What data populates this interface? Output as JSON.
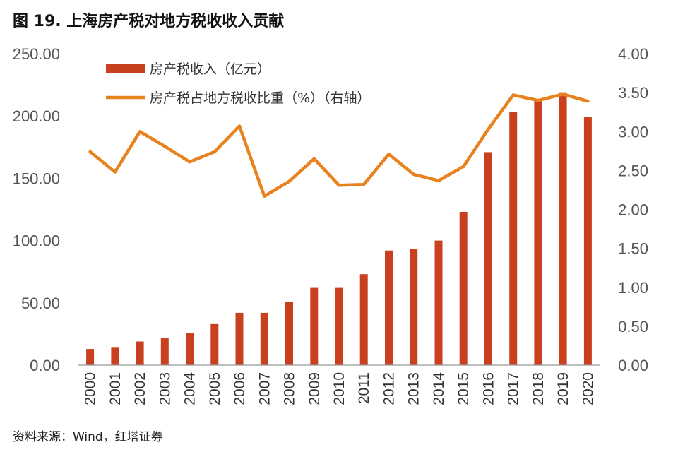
{
  "figure": {
    "title": "图 19. 上海房产税对地方税收收入贡献",
    "source": "资料来源：Wind，红塔证券"
  },
  "chart_data": {
    "type": "bar+line",
    "categories": [
      "2000",
      "2001",
      "2002",
      "2003",
      "2004",
      "2005",
      "2006",
      "2007",
      "2008",
      "2009",
      "2010",
      "2011",
      "2012",
      "2013",
      "2014",
      "2015",
      "2016",
      "2017",
      "2018",
      "2019",
      "2020"
    ],
    "series": [
      {
        "name": "房产税收入（亿元）",
        "type": "bar",
        "axis": "left",
        "color": "#C8401E",
        "values": [
          13,
          14,
          19,
          22,
          26,
          33,
          42,
          42,
          51,
          62,
          62,
          73,
          92,
          93,
          100,
          123,
          171,
          203,
          213,
          219,
          199
        ]
      },
      {
        "name": "房产税占地方税收比重（%）（右轴）",
        "type": "line",
        "axis": "right",
        "color": "#E8821E",
        "values": [
          2.74,
          2.48,
          3.0,
          2.81,
          2.61,
          2.74,
          3.07,
          2.17,
          2.36,
          2.65,
          2.31,
          2.32,
          2.71,
          2.45,
          2.37,
          2.55,
          3.03,
          3.47,
          3.4,
          3.48,
          3.39
        ]
      }
    ],
    "y_left": {
      "min": 0,
      "max": 250,
      "ticks": [
        "0.00",
        "50.00",
        "100.00",
        "150.00",
        "200.00",
        "250.00"
      ]
    },
    "y_right": {
      "min": 0,
      "max": 4,
      "ticks": [
        "0.00",
        "0.50",
        "1.00",
        "1.50",
        "2.00",
        "2.50",
        "3.00",
        "3.50",
        "4.00"
      ]
    },
    "grid": false,
    "legend_position": "top-left"
  }
}
